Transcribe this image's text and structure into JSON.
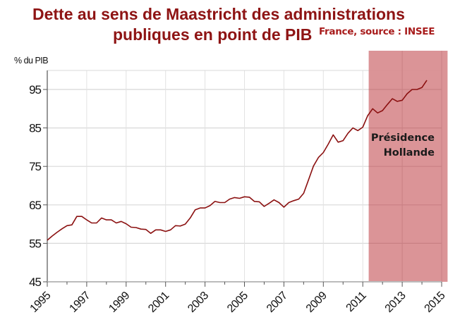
{
  "chart_data": {
    "type": "line",
    "title": "Dette au sens de Maastricht des administrations publiques en point de PIB",
    "title_line1": "Dette au sens de Maastricht des administrations",
    "title_line2": "publiques en point de PIB",
    "subtitle": "France, source : INSEE",
    "ylabel": "% du PIB",
    "xlabel": "",
    "xlim": [
      1995,
      2015
    ],
    "ylim": [
      45,
      100
    ],
    "yticks": [
      45,
      55,
      65,
      75,
      85,
      95
    ],
    "xticks": [
      1995,
      1997,
      1999,
      2001,
      2003,
      2005,
      2007,
      2009,
      2011,
      2013,
      2015
    ],
    "grid": true,
    "line_color": "#8b1010",
    "annotation": {
      "label_line1": "Présidence",
      "label_line2": "Hollande",
      "x_start": 2011.3,
      "x_end": 2015.3,
      "color": "#d98e91"
    },
    "x": [
      1995,
      1995.25,
      1995.5,
      1995.75,
      1996,
      1996.25,
      1996.5,
      1996.75,
      1997,
      1997.25,
      1997.5,
      1997.75,
      1998,
      1998.25,
      1998.5,
      1998.75,
      1999,
      1999.25,
      1999.5,
      1999.75,
      2000,
      2000.25,
      2000.5,
      2000.75,
      2001,
      2001.25,
      2001.5,
      2001.75,
      2002,
      2002.25,
      2002.5,
      2002.75,
      2003,
      2003.25,
      2003.5,
      2003.75,
      2004,
      2004.25,
      2004.5,
      2004.75,
      2005,
      2005.25,
      2005.5,
      2005.75,
      2006,
      2006.25,
      2006.5,
      2006.75,
      2007,
      2007.25,
      2007.5,
      2007.75,
      2008,
      2008.25,
      2008.5,
      2008.75,
      2009,
      2009.25,
      2009.5,
      2009.75,
      2010,
      2010.25,
      2010.5,
      2010.75,
      2011,
      2011.25,
      2011.5,
      2011.75,
      2012,
      2012.25,
      2012.5,
      2012.75,
      2013,
      2013.25,
      2013.5,
      2013.75,
      2014,
      2014.25
    ],
    "series": [
      {
        "values": [
          55.8,
          56.9,
          57.9,
          58.8,
          59.6,
          59.8,
          62.0,
          62.0,
          61.1,
          60.3,
          60.3,
          61.6,
          61.1,
          61.1,
          60.3,
          60.7,
          60.1,
          59.2,
          59.1,
          58.7,
          58.6,
          57.6,
          58.5,
          58.5,
          58.1,
          58.5,
          59.6,
          59.5,
          60.0,
          61.6,
          63.7,
          64.2,
          64.2,
          64.8,
          65.9,
          65.6,
          65.6,
          66.5,
          66.9,
          66.7,
          67.1,
          67.0,
          65.9,
          65.8,
          64.6,
          65.4,
          66.3,
          65.6,
          64.4,
          65.6,
          66.1,
          66.5,
          68.0,
          71.5,
          75.1,
          77.3,
          78.6,
          80.8,
          83.2,
          81.3,
          81.7,
          83.6,
          85.0,
          84.3,
          85.2,
          88.2,
          90.0,
          88.9,
          89.5,
          91.1,
          92.6,
          91.9,
          92.2,
          93.9,
          95.0,
          95.0,
          95.5,
          97.4
        ]
      }
    ]
  }
}
